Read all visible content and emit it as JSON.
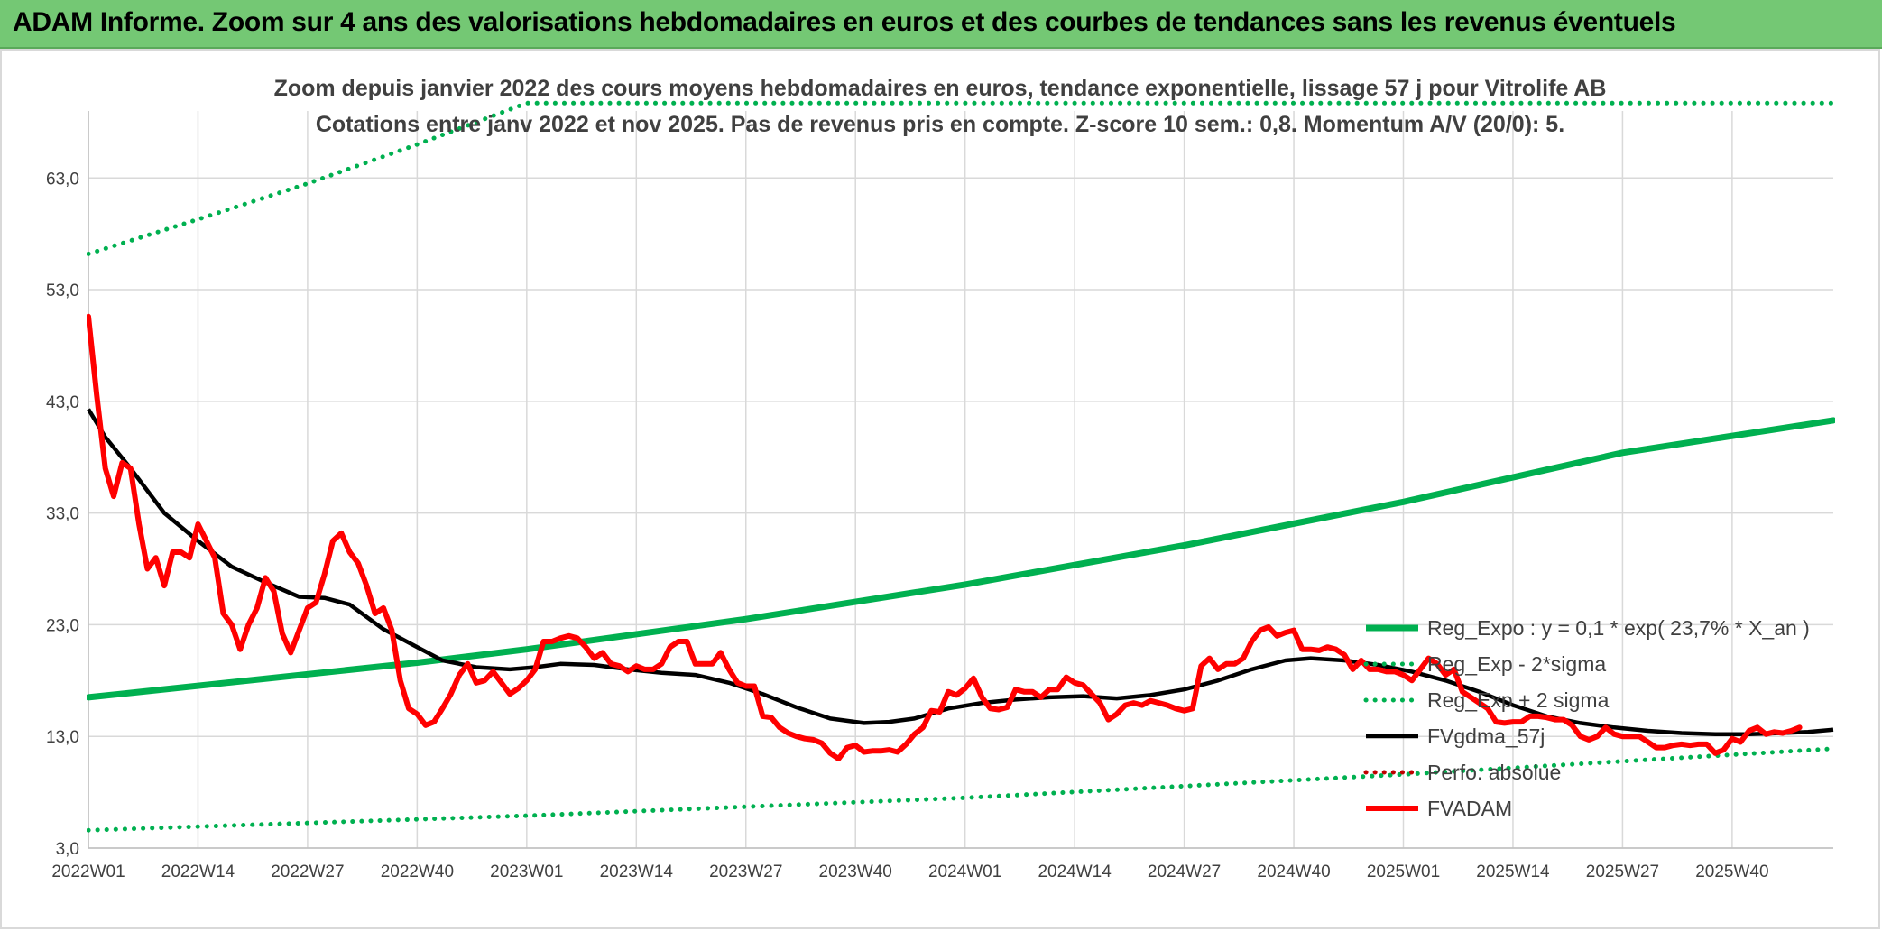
{
  "page": {
    "banner_title": "ADAM Informe. Zoom sur 4 ans des valorisations hebdomadaires en euros et des courbes de tendances sans les revenus éventuels"
  },
  "colors": {
    "banner_bg": "#74c874",
    "reg_expo": "#00b050",
    "sigma": "#00b050",
    "fvgdma": "#000000",
    "perfo": "#c00000",
    "fvadam": "#ff0000",
    "grid": "#d9d9d9",
    "text": "#404040"
  },
  "chart_data": {
    "type": "line",
    "title": "Zoom depuis janvier 2022 des cours moyens hebdomadaires en euros, tendance exponentielle, lissage 57 j pour Vitrolife AB",
    "subtitle": "Cotations entre janv 2022 et nov 2025. Pas de revenus pris en compte. Z-score 10 sem.: 0,8. Momentum A/V (20/0): 5.",
    "xlabel": "",
    "ylabel": "",
    "ylim": [
      3,
      69
    ],
    "y_ticks": [
      "3,0",
      "13,0",
      "23,0",
      "33,0",
      "43,0",
      "53,0",
      "63,0"
    ],
    "y_tick_values": [
      3,
      13,
      23,
      33,
      43,
      53,
      63
    ],
    "x_count": 208,
    "x_tick_labels": [
      "2022W01",
      "2022W14",
      "2022W27",
      "2022W40",
      "2023W01",
      "2023W14",
      "2023W27",
      "2023W40",
      "2024W01",
      "2024W14",
      "2024W27",
      "2024W40",
      "2025W01",
      "2025W14",
      "2025W27",
      "2025W40"
    ],
    "x_tick_indices": [
      0,
      13,
      26,
      39,
      52,
      65,
      78,
      91,
      104,
      117,
      130,
      143,
      156,
      169,
      182,
      195
    ],
    "grid": true,
    "legend_position": "right",
    "series": [
      {
        "name": "Reg_Expo : y = 0,1 * exp( 23,7% *  X_an )",
        "key": "reg_expo",
        "style": "solid-thick",
        "anchors": [
          [
            0,
            16.5
          ],
          [
            39,
            19.6
          ],
          [
            52,
            20.8
          ],
          [
            78,
            23.5
          ],
          [
            104,
            26.6
          ],
          [
            130,
            30.1
          ],
          [
            156,
            34.0
          ],
          [
            182,
            38.4
          ],
          [
            207,
            41.3
          ]
        ]
      },
      {
        "name": "Reg_Exp - 2*sigma",
        "key": "minus2",
        "style": "dotted",
        "anchors": [
          [
            0,
            4.6
          ],
          [
            52,
            5.9
          ],
          [
            104,
            7.5
          ],
          [
            156,
            9.6
          ],
          [
            207,
            11.9
          ]
        ]
      },
      {
        "name": "Reg_Exp + 2 sigma",
        "key": "plus2",
        "style": "dotted",
        "anchors": [
          [
            0,
            56.2
          ],
          [
            13,
            59.3
          ],
          [
            26,
            62.5
          ],
          [
            39,
            66.0
          ],
          [
            52,
            69.7
          ],
          [
            178,
            69.7
          ],
          [
            207,
            69.7
          ]
        ]
      },
      {
        "name": "FVgdma_57j",
        "key": "fvgdma",
        "style": "solid",
        "anchors": [
          [
            0,
            42.3
          ],
          [
            2,
            39.8
          ],
          [
            5,
            37.0
          ],
          [
            9,
            33.0
          ],
          [
            13,
            30.5
          ],
          [
            17,
            28.2
          ],
          [
            21,
            26.8
          ],
          [
            25,
            25.5
          ],
          [
            28,
            25.4
          ],
          [
            31,
            24.8
          ],
          [
            35,
            22.6
          ],
          [
            39,
            21.0
          ],
          [
            42,
            19.8
          ],
          [
            46,
            19.2
          ],
          [
            50,
            19.0
          ],
          [
            53,
            19.2
          ],
          [
            56,
            19.5
          ],
          [
            60,
            19.4
          ],
          [
            64,
            19.0
          ],
          [
            68,
            18.7
          ],
          [
            72,
            18.5
          ],
          [
            76,
            17.8
          ],
          [
            80,
            16.8
          ],
          [
            84,
            15.6
          ],
          [
            88,
            14.6
          ],
          [
            92,
            14.2
          ],
          [
            95,
            14.3
          ],
          [
            98,
            14.6
          ],
          [
            102,
            15.5
          ],
          [
            106,
            16.0
          ],
          [
            110,
            16.3
          ],
          [
            114,
            16.5
          ],
          [
            118,
            16.6
          ],
          [
            122,
            16.4
          ],
          [
            126,
            16.7
          ],
          [
            130,
            17.2
          ],
          [
            134,
            18.0
          ],
          [
            138,
            19.0
          ],
          [
            142,
            19.8
          ],
          [
            145,
            20.0
          ],
          [
            149,
            19.8
          ],
          [
            153,
            19.4
          ],
          [
            157,
            18.8
          ],
          [
            161,
            18.0
          ],
          [
            165,
            17.0
          ],
          [
            169,
            15.8
          ],
          [
            173,
            14.8
          ],
          [
            177,
            14.2
          ],
          [
            181,
            13.8
          ],
          [
            185,
            13.5
          ],
          [
            189,
            13.3
          ],
          [
            193,
            13.2
          ],
          [
            197,
            13.2
          ],
          [
            201,
            13.3
          ],
          [
            204,
            13.4
          ],
          [
            207,
            13.6
          ]
        ]
      },
      {
        "name": "Perfo. absolue",
        "key": "perfo",
        "style": "dotted",
        "anchors": []
      },
      {
        "name": "FVADAM",
        "key": "fvadam",
        "style": "solid-thick",
        "anchors": [
          [
            0,
            50.6
          ],
          [
            1,
            43.5
          ],
          [
            2,
            37.0
          ],
          [
            3,
            34.5
          ],
          [
            4,
            37.5
          ],
          [
            5,
            37.0
          ],
          [
            6,
            32.0
          ],
          [
            7,
            28.0
          ],
          [
            8,
            29.0
          ],
          [
            9,
            26.5
          ],
          [
            10,
            29.5
          ],
          [
            11,
            29.5
          ],
          [
            12,
            29.0
          ],
          [
            13,
            32.0
          ],
          [
            14,
            30.5
          ],
          [
            15,
            29.0
          ],
          [
            16,
            24.0
          ],
          [
            17,
            23.0
          ],
          [
            18,
            20.8
          ],
          [
            19,
            23.0
          ],
          [
            20,
            24.5
          ],
          [
            21,
            27.2
          ],
          [
            22,
            26.0
          ],
          [
            23,
            22.2
          ],
          [
            24,
            20.5
          ],
          [
            25,
            22.5
          ],
          [
            26,
            24.5
          ],
          [
            27,
            25.0
          ],
          [
            28,
            27.5
          ],
          [
            29,
            30.5
          ],
          [
            30,
            31.2
          ],
          [
            31,
            29.5
          ],
          [
            32,
            28.5
          ],
          [
            33,
            26.5
          ],
          [
            34,
            24.0
          ],
          [
            35,
            24.5
          ],
          [
            36,
            22.5
          ],
          [
            37,
            18.0
          ],
          [
            38,
            15.5
          ],
          [
            39,
            15.0
          ],
          [
            40,
            14.0
          ],
          [
            41,
            14.3
          ],
          [
            42,
            15.5
          ],
          [
            43,
            16.8
          ],
          [
            44,
            18.5
          ],
          [
            45,
            19.5
          ],
          [
            46,
            17.8
          ],
          [
            47,
            18.0
          ],
          [
            48,
            18.8
          ],
          [
            49,
            17.8
          ],
          [
            50,
            16.8
          ],
          [
            51,
            17.3
          ],
          [
            52,
            18.0
          ],
          [
            53,
            19.0
          ],
          [
            54,
            21.5
          ],
          [
            55,
            21.5
          ],
          [
            56,
            21.8
          ],
          [
            57,
            22.0
          ],
          [
            58,
            21.8
          ],
          [
            59,
            21.0
          ],
          [
            60,
            20.0
          ],
          [
            61,
            20.5
          ],
          [
            62,
            19.5
          ],
          [
            63,
            19.3
          ],
          [
            64,
            18.8
          ],
          [
            65,
            19.3
          ],
          [
            66,
            19.0
          ],
          [
            67,
            19.0
          ],
          [
            68,
            19.5
          ],
          [
            69,
            21.0
          ],
          [
            70,
            21.5
          ],
          [
            71,
            21.5
          ],
          [
            72,
            19.5
          ],
          [
            73,
            19.5
          ],
          [
            74,
            19.5
          ],
          [
            75,
            20.5
          ],
          [
            76,
            19.0
          ],
          [
            77,
            17.8
          ],
          [
            78,
            17.5
          ],
          [
            79,
            17.5
          ],
          [
            80,
            14.8
          ],
          [
            81,
            14.7
          ],
          [
            82,
            13.8
          ],
          [
            83,
            13.3
          ],
          [
            84,
            13.0
          ],
          [
            85,
            12.8
          ],
          [
            86,
            12.7
          ],
          [
            87,
            12.4
          ],
          [
            88,
            11.5
          ],
          [
            89,
            11.0
          ],
          [
            90,
            12.0
          ],
          [
            91,
            12.2
          ],
          [
            92,
            11.6
          ],
          [
            93,
            11.7
          ],
          [
            94,
            11.7
          ],
          [
            95,
            11.8
          ],
          [
            96,
            11.6
          ],
          [
            97,
            12.3
          ],
          [
            98,
            13.2
          ],
          [
            99,
            13.8
          ],
          [
            100,
            15.3
          ],
          [
            101,
            15.2
          ],
          [
            102,
            17.0
          ],
          [
            103,
            16.7
          ],
          [
            104,
            17.3
          ],
          [
            105,
            18.2
          ],
          [
            106,
            16.5
          ],
          [
            107,
            15.5
          ],
          [
            108,
            15.4
          ],
          [
            109,
            15.6
          ],
          [
            110,
            17.2
          ],
          [
            111,
            17.0
          ],
          [
            112,
            17.0
          ],
          [
            113,
            16.5
          ],
          [
            114,
            17.2
          ],
          [
            115,
            17.2
          ],
          [
            116,
            18.3
          ],
          [
            117,
            17.8
          ],
          [
            118,
            17.6
          ],
          [
            119,
            16.8
          ],
          [
            120,
            16.0
          ],
          [
            121,
            14.5
          ],
          [
            122,
            15.0
          ],
          [
            123,
            15.8
          ],
          [
            124,
            16.0
          ],
          [
            125,
            15.8
          ],
          [
            126,
            16.2
          ],
          [
            127,
            16.0
          ],
          [
            128,
            15.8
          ],
          [
            129,
            15.5
          ],
          [
            130,
            15.3
          ],
          [
            131,
            15.5
          ],
          [
            132,
            19.3
          ],
          [
            133,
            20.0
          ],
          [
            134,
            19.0
          ],
          [
            135,
            19.5
          ],
          [
            136,
            19.5
          ],
          [
            137,
            20.0
          ],
          [
            138,
            21.5
          ],
          [
            139,
            22.5
          ],
          [
            140,
            22.8
          ],
          [
            141,
            22.0
          ],
          [
            142,
            22.3
          ],
          [
            143,
            22.5
          ],
          [
            144,
            20.8
          ],
          [
            145,
            20.8
          ],
          [
            146,
            20.7
          ],
          [
            147,
            21.0
          ],
          [
            148,
            20.8
          ],
          [
            149,
            20.3
          ],
          [
            150,
            19.0
          ],
          [
            151,
            19.8
          ],
          [
            152,
            19.0
          ],
          [
            153,
            19.0
          ],
          [
            154,
            18.8
          ],
          [
            155,
            18.8
          ],
          [
            156,
            18.5
          ],
          [
            157,
            18.0
          ],
          [
            158,
            19.0
          ],
          [
            159,
            20.0
          ],
          [
            160,
            19.5
          ],
          [
            161,
            18.5
          ],
          [
            162,
            19.0
          ],
          [
            163,
            17.0
          ],
          [
            164,
            16.5
          ],
          [
            165,
            16.0
          ],
          [
            166,
            15.5
          ],
          [
            167,
            14.3
          ],
          [
            168,
            14.2
          ],
          [
            169,
            14.3
          ],
          [
            170,
            14.3
          ],
          [
            171,
            14.8
          ],
          [
            172,
            14.8
          ],
          [
            173,
            14.7
          ],
          [
            174,
            14.5
          ],
          [
            175,
            14.5
          ],
          [
            176,
            14.0
          ],
          [
            177,
            13.0
          ],
          [
            178,
            12.7
          ],
          [
            179,
            13.0
          ],
          [
            180,
            13.8
          ],
          [
            181,
            13.2
          ],
          [
            182,
            13.0
          ],
          [
            183,
            13.0
          ],
          [
            184,
            13.0
          ],
          [
            185,
            12.5
          ],
          [
            186,
            12.0
          ],
          [
            187,
            12.0
          ],
          [
            188,
            12.2
          ],
          [
            189,
            12.3
          ],
          [
            190,
            12.2
          ],
          [
            191,
            12.3
          ],
          [
            192,
            12.3
          ],
          [
            193,
            11.5
          ],
          [
            194,
            11.8
          ],
          [
            195,
            12.8
          ],
          [
            196,
            12.5
          ],
          [
            197,
            13.5
          ],
          [
            198,
            13.8
          ],
          [
            199,
            13.2
          ],
          [
            200,
            13.4
          ],
          [
            201,
            13.3
          ],
          [
            202,
            13.5
          ],
          [
            203,
            13.8
          ]
        ]
      }
    ]
  }
}
